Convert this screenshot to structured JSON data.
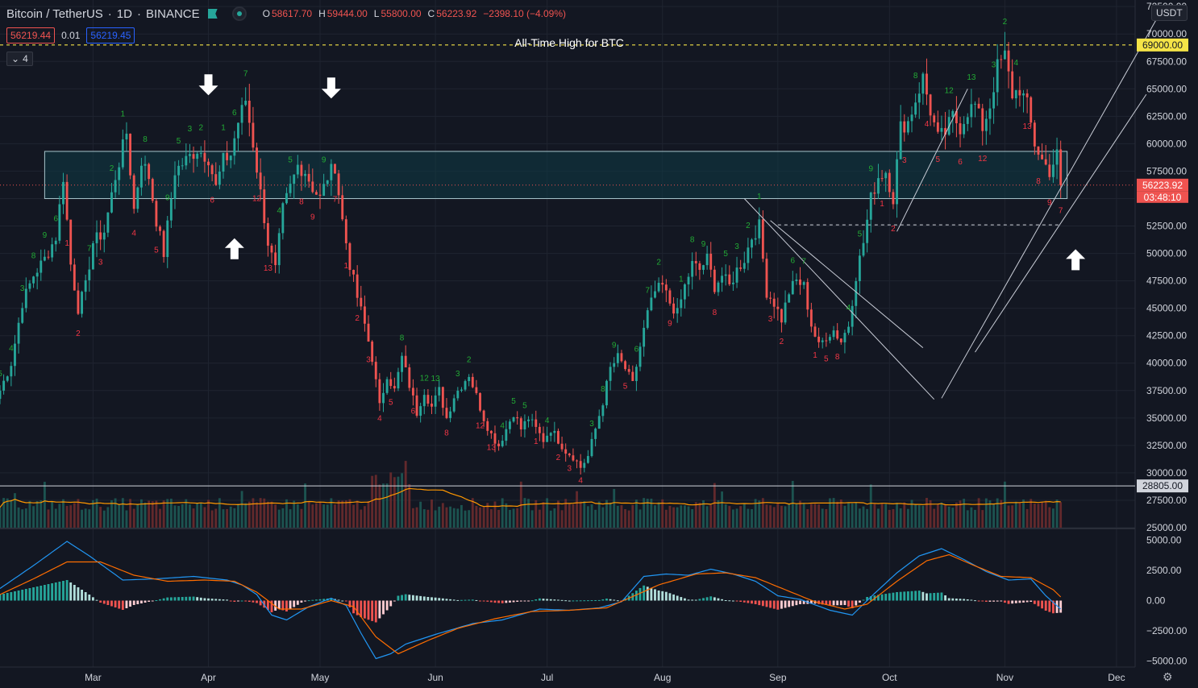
{
  "header": {
    "symbol": "Bitcoin / TetherUS",
    "interval": "1D",
    "exchange": "BINANCE",
    "ohlc": [
      {
        "k": "O",
        "v": "58617.70"
      },
      {
        "k": "H",
        "v": "59444.00"
      },
      {
        "k": "L",
        "v": "55800.00"
      },
      {
        "k": "C",
        "v": "56223.92"
      },
      {
        "k": "",
        "v": "−2398.10 (−4.09%)"
      }
    ],
    "sell_price": "56219.44",
    "spread": "0.01",
    "buy_price": "56219.45",
    "indicator_count": "4",
    "currency": "USDT"
  },
  "colors": {
    "background": "#131722",
    "up": "#26a69a",
    "down": "#ef5350",
    "td_up": "#22ab35",
    "td_down": "#f23645",
    "zone": "#0f3b46",
    "ath_line": "#f5e447",
    "macd": "#2196f3",
    "signal": "#ff6d00",
    "ma": "#ff9800"
  },
  "chart_data": {
    "type": "candlestick",
    "title": "",
    "price_axis": {
      "ticks": [
        25000,
        27500,
        30000,
        32500,
        35000,
        37500,
        40000,
        42500,
        45000,
        47500,
        50000,
        52500,
        55000,
        57500,
        60000,
        62500,
        65000,
        67500,
        70000,
        72500
      ],
      "tick_labels": [
        "25000.00",
        "27500.00",
        "30000.00",
        "32500.00",
        "35000.00",
        "37500.00",
        "40000.00",
        "42500.00",
        "45000.00",
        "47500.00",
        "50000.00",
        "52500.00",
        "55000.00",
        "57500.00",
        "60000.00",
        "62500.00",
        "65000.00",
        "67500.00",
        "70000.00",
        "72500.00"
      ],
      "range": [
        25000,
        73100
      ]
    },
    "x_axis": {
      "labels": [
        "Mar",
        "Apr",
        "May",
        "Jun",
        "Jul",
        "Aug",
        "Sep",
        "Oct",
        "Nov",
        "Dec"
      ],
      "label_days": [
        28,
        59,
        89,
        120,
        150,
        181,
        212,
        242,
        273,
        303
      ],
      "range_days": [
        3,
        308
      ]
    },
    "current_price": {
      "value": 56223.92,
      "label": "56223.92",
      "countdown": "03:48:10"
    },
    "ath_level": {
      "value": 69000,
      "label": "69000.00",
      "annotation": "All-Time High for BTC"
    },
    "support_level": {
      "value": 28805,
      "label": "28805.00"
    },
    "resistance_dashed": 52600,
    "zone": {
      "low": 55000,
      "high": 59300
    },
    "price_path": [
      [
        3,
        37500
      ],
      [
        6,
        40000
      ],
      [
        9,
        45500
      ],
      [
        12,
        48000
      ],
      [
        15,
        49500
      ],
      [
        18,
        51500
      ],
      [
        20,
        57000
      ],
      [
        22,
        49000
      ],
      [
        24,
        45000
      ],
      [
        26,
        47000
      ],
      [
        28,
        51000
      ],
      [
        31,
        52000
      ],
      [
        34,
        57000
      ],
      [
        37,
        61000
      ],
      [
        39,
        54000
      ],
      [
        41,
        58500
      ],
      [
        43,
        57000
      ],
      [
        45,
        53000
      ],
      [
        47,
        50000
      ],
      [
        50,
        57500
      ],
      [
        53,
        58500
      ],
      [
        56,
        59500
      ],
      [
        59,
        58700
      ],
      [
        61,
        56000
      ],
      [
        63,
        58500
      ],
      [
        65,
        59000
      ],
      [
        67,
        62000
      ],
      [
        69,
        64000
      ],
      [
        71,
        60000
      ],
      [
        73,
        55500
      ],
      [
        75,
        51000
      ],
      [
        77,
        48500
      ],
      [
        79,
        54000
      ],
      [
        81,
        56000
      ],
      [
        83,
        58000
      ],
      [
        85,
        57500
      ],
      [
        87,
        56000
      ],
      [
        89,
        55000
      ],
      [
        91,
        57000
      ],
      [
        93,
        58000
      ],
      [
        95,
        53000
      ],
      [
        97,
        49000
      ],
      [
        99,
        46000
      ],
      [
        101,
        43500
      ],
      [
        103,
        40500
      ],
      [
        105,
        36000
      ],
      [
        107,
        39000
      ],
      [
        109,
        37500
      ],
      [
        111,
        40500
      ],
      [
        113,
        38000
      ],
      [
        115,
        35500
      ],
      [
        117,
        37500
      ],
      [
        119,
        36000
      ],
      [
        121,
        37500
      ],
      [
        123,
        35000
      ],
      [
        125,
        37000
      ],
      [
        127,
        38000
      ],
      [
        129,
        39000
      ],
      [
        131,
        37000
      ],
      [
        133,
        35000
      ],
      [
        135,
        33500
      ],
      [
        137,
        32500
      ],
      [
        139,
        34000
      ],
      [
        141,
        35500
      ],
      [
        143,
        34000
      ],
      [
        145,
        35000
      ],
      [
        147,
        34000
      ],
      [
        149,
        33000
      ],
      [
        151,
        34000
      ],
      [
        153,
        33000
      ],
      [
        155,
        32000
      ],
      [
        157,
        31500
      ],
      [
        159,
        30500
      ],
      [
        161,
        31500
      ],
      [
        163,
        34000
      ],
      [
        165,
        36500
      ],
      [
        167,
        39500
      ],
      [
        169,
        40500
      ],
      [
        171,
        39500
      ],
      [
        173,
        38000
      ],
      [
        175,
        41500
      ],
      [
        177,
        44500
      ],
      [
        179,
        46500
      ],
      [
        181,
        47000
      ],
      [
        183,
        45500
      ],
      [
        185,
        44500
      ],
      [
        187,
        47000
      ],
      [
        189,
        49000
      ],
      [
        191,
        48500
      ],
      [
        193,
        49500
      ],
      [
        195,
        47000
      ],
      [
        197,
        48000
      ],
      [
        199,
        47000
      ],
      [
        201,
        48500
      ],
      [
        203,
        49500
      ],
      [
        205,
        51500
      ],
      [
        207,
        52500
      ],
      [
        209,
        46500
      ],
      [
        211,
        45500
      ],
      [
        213,
        44000
      ],
      [
        215,
        46500
      ],
      [
        217,
        47500
      ],
      [
        219,
        47000
      ],
      [
        221,
        43500
      ],
      [
        223,
        41500
      ],
      [
        225,
        42500
      ],
      [
        227,
        43000
      ],
      [
        229,
        42000
      ],
      [
        231,
        43500
      ],
      [
        233,
        48000
      ],
      [
        235,
        51000
      ],
      [
        237,
        55000
      ],
      [
        239,
        57000
      ],
      [
        241,
        57500
      ],
      [
        243,
        55000
      ],
      [
        245,
        61500
      ],
      [
        247,
        62000
      ],
      [
        249,
        64000
      ],
      [
        251,
        66000
      ],
      [
        253,
        63000
      ],
      [
        255,
        60500
      ],
      [
        257,
        61000
      ],
      [
        259,
        62500
      ],
      [
        261,
        61500
      ],
      [
        263,
        63000
      ],
      [
        265,
        63500
      ],
      [
        267,
        61500
      ],
      [
        269,
        63500
      ],
      [
        271,
        67000
      ],
      [
        273,
        68000
      ],
      [
        275,
        64500
      ],
      [
        277,
        65000
      ],
      [
        279,
        63500
      ],
      [
        281,
        60000
      ],
      [
        283,
        58500
      ],
      [
        285,
        57500
      ],
      [
        287,
        59000
      ],
      [
        288,
        56223.92
      ]
    ],
    "volume_axis": {
      "range": [
        0,
        170000
      ]
    },
    "macd_axis": {
      "ticks": [
        5000,
        2500,
        0,
        -2500,
        -5000
      ],
      "tick_labels": [
        "5000.00",
        "2500.00",
        "0.00",
        "−2500.00",
        "−5000.00"
      ],
      "range": [
        -5500,
        5700
      ]
    },
    "macd_line": [
      [
        3,
        1000
      ],
      [
        12,
        2900
      ],
      [
        21,
        4900
      ],
      [
        27,
        3700
      ],
      [
        36,
        1700
      ],
      [
        45,
        1800
      ],
      [
        55,
        2000
      ],
      [
        64,
        1700
      ],
      [
        68,
        1300
      ],
      [
        72,
        500
      ],
      [
        76,
        -1200
      ],
      [
        80,
        -1600
      ],
      [
        86,
        -500
      ],
      [
        92,
        200
      ],
      [
        96,
        -400
      ],
      [
        100,
        -2700
      ],
      [
        104,
        -4800
      ],
      [
        108,
        -4400
      ],
      [
        112,
        -3600
      ],
      [
        120,
        -2800
      ],
      [
        130,
        -1900
      ],
      [
        138,
        -1600
      ],
      [
        148,
        -700
      ],
      [
        156,
        -800
      ],
      [
        164,
        -600
      ],
      [
        170,
        -100
      ],
      [
        176,
        2000
      ],
      [
        182,
        2200
      ],
      [
        188,
        2100
      ],
      [
        194,
        2600
      ],
      [
        200,
        2200
      ],
      [
        206,
        1600
      ],
      [
        212,
        400
      ],
      [
        218,
        100
      ],
      [
        226,
        -800
      ],
      [
        232,
        -1200
      ],
      [
        238,
        600
      ],
      [
        244,
        2300
      ],
      [
        250,
        3700
      ],
      [
        256,
        4300
      ],
      [
        262,
        3400
      ],
      [
        268,
        2400
      ],
      [
        274,
        1700
      ],
      [
        280,
        1800
      ],
      [
        284,
        400
      ],
      [
        288,
        -700
      ]
    ],
    "signal_line": [
      [
        3,
        500
      ],
      [
        12,
        1800
      ],
      [
        21,
        3200
      ],
      [
        30,
        3200
      ],
      [
        39,
        2100
      ],
      [
        48,
        1600
      ],
      [
        58,
        1700
      ],
      [
        66,
        1600
      ],
      [
        72,
        700
      ],
      [
        78,
        -700
      ],
      [
        84,
        -700
      ],
      [
        92,
        0
      ],
      [
        98,
        -500
      ],
      [
        104,
        -3000
      ],
      [
        110,
        -4400
      ],
      [
        118,
        -3300
      ],
      [
        126,
        -2300
      ],
      [
        136,
        -1500
      ],
      [
        146,
        -900
      ],
      [
        156,
        -800
      ],
      [
        166,
        -600
      ],
      [
        172,
        200
      ],
      [
        180,
        1300
      ],
      [
        190,
        2200
      ],
      [
        198,
        2300
      ],
      [
        206,
        1900
      ],
      [
        214,
        900
      ],
      [
        222,
        -100
      ],
      [
        230,
        -700
      ],
      [
        236,
        -300
      ],
      [
        244,
        1600
      ],
      [
        252,
        3300
      ],
      [
        258,
        3800
      ],
      [
        264,
        3000
      ],
      [
        272,
        2000
      ],
      [
        280,
        1900
      ],
      [
        286,
        900
      ],
      [
        288,
        300
      ]
    ],
    "td_counts_up": [
      "5",
      "4",
      "3",
      "8",
      "9",
      "6",
      "7",
      "2",
      "1",
      "8",
      "9",
      "5",
      "3",
      "2",
      "1",
      "6",
      "7",
      "4",
      "5",
      "9",
      "8",
      "12",
      "13",
      "3",
      "2",
      "4",
      "5"
    ],
    "td_counts_down": [
      "1",
      "2",
      "3",
      "4",
      "5",
      "6",
      "12",
      "13",
      "8",
      "9",
      "7",
      "1",
      "2",
      "3",
      "4",
      "5",
      "6",
      "8",
      "12",
      "13",
      "1",
      "2",
      "3",
      "4",
      "5",
      "9",
      "8",
      "3",
      "2",
      "1",
      "5",
      "8"
    ]
  }
}
